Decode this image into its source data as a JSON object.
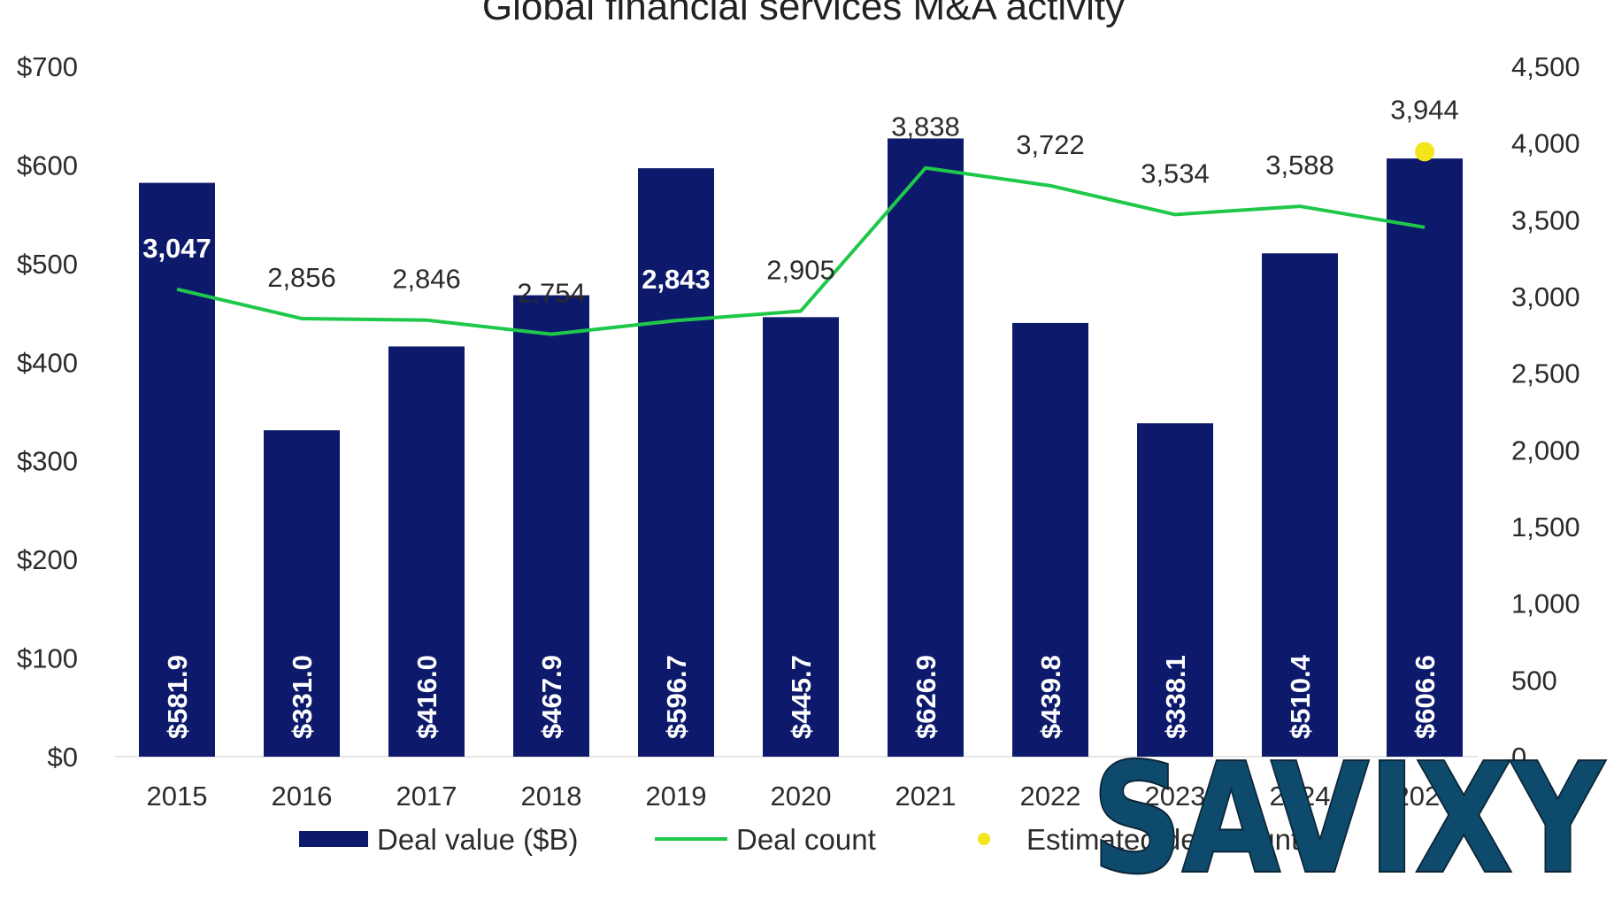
{
  "chart_data": {
    "type": "bar",
    "title": "Global financial services M&A activity",
    "categories": [
      "2015",
      "2016",
      "2017",
      "2018",
      "2019",
      "2020",
      "2021",
      "2022",
      "2023",
      "2024",
      "2025"
    ],
    "series": [
      {
        "name": "Deal value ($B)",
        "kind": "bar",
        "axis": "left",
        "values": [
          581.9,
          331.0,
          416.0,
          467.9,
          596.7,
          445.7,
          626.9,
          439.8,
          338.1,
          510.4,
          606.6
        ],
        "labels": [
          "$581.9",
          "$331.0",
          "$416.0",
          "$467.9",
          "$596.7",
          "$445.7",
          "$626.9",
          "$439.8",
          "$338.1",
          "$510.4",
          "$606.6"
        ],
        "color": "#0d1a6b"
      },
      {
        "name": "Deal count",
        "kind": "line",
        "axis": "right",
        "values": [
          3047,
          2856,
          2846,
          2754,
          2843,
          2905,
          3838,
          3722,
          3534,
          3588,
          3451
        ],
        "labels": [
          "3,047",
          "2,856",
          "2,846",
          "2,754",
          "2,843",
          "2,905",
          "3,838",
          "3,722",
          "3,534",
          "3,588",
          ""
        ],
        "color": "#1fc84a"
      },
      {
        "name": "Estimated deal count",
        "kind": "point",
        "axis": "right",
        "index": 10,
        "value": 3944,
        "label": "3,944",
        "color": "#f2e51a"
      }
    ],
    "yleft": {
      "ylim": [
        0,
        700
      ],
      "ticks": [
        "$0",
        "$100",
        "$200",
        "$300",
        "$400",
        "$500",
        "$600",
        "$700"
      ]
    },
    "yright": {
      "ylim": [
        0,
        4500
      ],
      "ticks": [
        "0",
        "500",
        "1,000",
        "1,500",
        "2,000",
        "2,500",
        "3,000",
        "3,500",
        "4,000",
        "4,500"
      ]
    },
    "legend": {
      "position": "bottom",
      "items": [
        "Deal value ($B)",
        "Deal count",
        "Estimated deal count"
      ]
    },
    "grid": false
  },
  "watermark": {
    "text": "SAVIXY",
    "color": "#0e4a6b"
  }
}
